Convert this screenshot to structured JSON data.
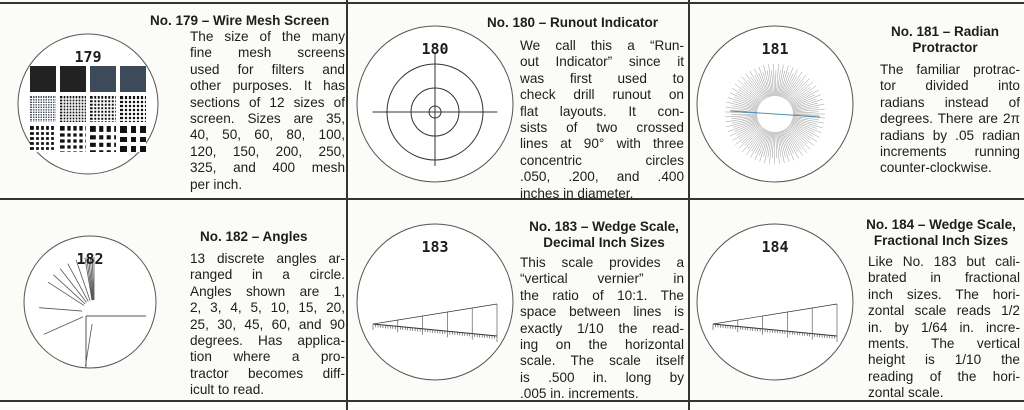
{
  "entries": [
    {
      "number": "179",
      "title_lines": [
        "No. 179 – Wire Mesh Screen"
      ],
      "reticle_type": "mesh",
      "body_lines": [
        "The size of the many",
        "fine mesh screens",
        "used for filters and",
        "other purposes. It has",
        "sections of 12 sizes of",
        "screen. Sizes are 35,",
        "40, 50, 60, 80, 100,",
        "120, 150, 200, 250,",
        "325, and 400 mesh",
        "per inch."
      ]
    },
    {
      "number": "180",
      "title_lines": [
        "No. 180 – Runout Indicator"
      ],
      "reticle_type": "runout",
      "body_lines": [
        "We call this a “Run-",
        "out Indicator” since it",
        "was first used to",
        "check drill runout on",
        "flat layouts. It con-",
        "sists of two crossed",
        "lines at 90° with three",
        "concentric circles",
        ".050, .200, and .400",
        "inches in diameter."
      ]
    },
    {
      "number": "181",
      "title_lines": [
        "No. 181 – Radian",
        "Protractor"
      ],
      "reticle_type": "radian",
      "body_lines": [
        "The familiar protrac-",
        "tor divided into",
        "radians instead of",
        "degrees. There are 2π",
        "radians by .05 radian",
        "increments running",
        "counter-clockwise."
      ]
    },
    {
      "number": "182",
      "title_lines": [
        "No. 182 – Angles"
      ],
      "reticle_type": "angles",
      "body_lines": [
        "13 discrete angles ar-",
        "ranged in a circle.",
        "Angles shown are 1,",
        "2, 3, 4, 5, 10, 15, 20,",
        "25, 30, 45, 60, and 90",
        "degrees. Has applica-",
        "tion where a pro-",
        "tractor becomes diff-",
        "icult to read."
      ]
    },
    {
      "number": "183",
      "title_lines": [
        "No. 183 – Wedge Scale,",
        "Decimal Inch Sizes"
      ],
      "reticle_type": "wedge",
      "body_lines": [
        "This scale provides a",
        "“vertical vernier” in",
        "the ratio of 10:1. The",
        "space between lines is",
        "exactly 1/10 the read-",
        "ing on the horizontal",
        "scale. The scale itself",
        "is .500 in. long by",
        ".005 in. increments."
      ]
    },
    {
      "number": "184",
      "title_lines": [
        "No. 184 – Wedge Scale,",
        "Fractional Inch Sizes"
      ],
      "reticle_type": "wedge",
      "body_lines": [
        "Like No. 183 but cali-",
        "brated in fractional",
        "inch sizes. The hori-",
        "zontal scale reads 1/2",
        "in. by 1/64 in. incre-",
        "ments. The vertical",
        "height is 1/10 the",
        "reading of the hori-",
        "zontal scale."
      ]
    }
  ]
}
